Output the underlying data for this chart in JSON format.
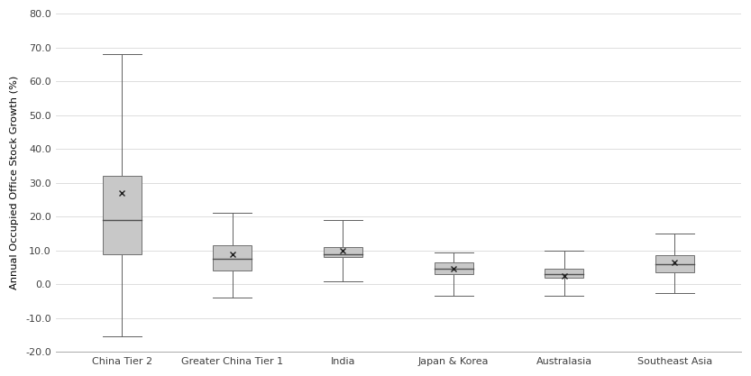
{
  "categories": [
    "China Tier 2",
    "Greater China Tier 1",
    "India",
    "Japan & Korea",
    "Australasia",
    "Southeast Asia"
  ],
  "boxes": [
    {
      "whisker_low": -15.5,
      "q1": 9.0,
      "median": 19.0,
      "q3": 32.0,
      "whisker_high": 68.0,
      "mean": 27.0
    },
    {
      "whisker_low": -4.0,
      "q1": 4.0,
      "median": 7.5,
      "q3": 11.5,
      "whisker_high": 21.0,
      "mean": 9.0
    },
    {
      "whisker_low": 1.0,
      "q1": 8.0,
      "median": 9.0,
      "q3": 11.0,
      "whisker_high": 19.0,
      "mean": 10.0
    },
    {
      "whisker_low": -3.5,
      "q1": 3.0,
      "median": 4.5,
      "q3": 6.5,
      "whisker_high": 9.5,
      "mean": 4.5
    },
    {
      "whisker_low": -3.5,
      "q1": 2.0,
      "median": 3.0,
      "q3": 4.5,
      "whisker_high": 10.0,
      "mean": 2.5
    },
    {
      "whisker_low": -2.5,
      "q1": 3.5,
      "median": 6.0,
      "q3": 8.5,
      "whisker_high": 15.0,
      "mean": 6.5
    }
  ],
  "ylabel": "Annual Occupied Office Stock Growth (%)",
  "ylim": [
    -20.0,
    80.0
  ],
  "yticks": [
    -20.0,
    -10.0,
    0.0,
    10.0,
    20.0,
    30.0,
    40.0,
    50.0,
    60.0,
    70.0,
    80.0
  ],
  "box_color": "#c8c8c8",
  "box_edge_color": "#707070",
  "median_color": "#505050",
  "whisker_color": "#606060",
  "mean_color": "#202020",
  "background_color": "#ffffff",
  "grid_color": "#d8d8d8",
  "figsize": [
    8.33,
    4.17
  ],
  "dpi": 100
}
